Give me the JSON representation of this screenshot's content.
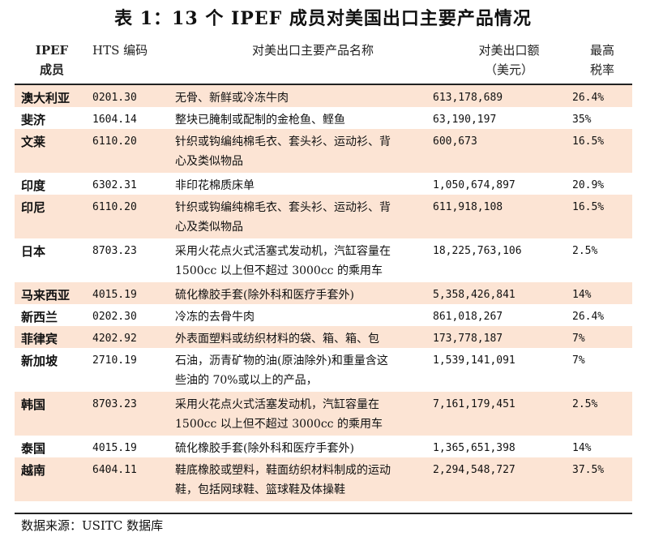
{
  "title": "表 1：13 个 IPEF 成员对美国出口主要产品情况",
  "header": {
    "member_line1": "IPEF",
    "member_line2": "成员",
    "hts": "HTS 编码",
    "product": "对美出口主要产品名称",
    "value_line1": "对美出口额",
    "value_line2": "（美元）",
    "rate_line1": "最高",
    "rate_line2": "税率"
  },
  "rows": [
    {
      "member": "澳大利亚",
      "hts": "0201.30",
      "product": "无骨、新鲜或冷冻牛肉",
      "value": "613,178,689",
      "rate": "26.4%"
    },
    {
      "member": "斐济",
      "hts": "1604.14",
      "product": "整块已腌制或配制的金枪鱼、鲣鱼",
      "value": "63,190,197",
      "rate": "35%"
    },
    {
      "member": "文莱",
      "hts": "6110.20",
      "product": "针织或钩编纯棉毛衣、套头衫、运动衫、背\n心及类似物品",
      "value": "600,673",
      "rate": "16.5%"
    },
    {
      "member": "印度",
      "hts": "6302.31",
      "product": "非印花棉质床单",
      "value": "1,050,674,897",
      "rate": "20.9%"
    },
    {
      "member": "印尼",
      "hts": "6110.20",
      "product": "针织或钩编纯棉毛衣、套头衫、运动衫、背\n心及类似物品",
      "value": "611,918,108",
      "rate": "16.5%"
    },
    {
      "member": "日本",
      "hts": "8703.23",
      "product": "采用火花点火式活塞式发动机，汽缸容量在\n1500cc 以上但不超过 3000cc 的乘用车",
      "value": "18,225,763,106",
      "rate": "2.5%"
    },
    {
      "member": "马来西亚",
      "hts": "4015.19",
      "product": "硫化橡胶手套(除外科和医疗手套外)",
      "value": "5,358,426,841",
      "rate": "14%"
    },
    {
      "member": "新西兰",
      "hts": "0202.30",
      "product": "冷冻的去骨牛肉",
      "value": "861,018,267",
      "rate": "26.4%"
    },
    {
      "member": "菲律宾",
      "hts": "4202.92",
      "product": "外表面塑料或纺织材料的袋、箱、箱、包",
      "value": "173,778,187",
      "rate": "7%"
    },
    {
      "member": "新加坡",
      "hts": "2710.19",
      "product": "石油，沥青矿物的油(原油除外)和重量含这\n些油的 70%或以上的产品，",
      "value": "1,539,141,091",
      "rate": "7%"
    },
    {
      "member": "韩国",
      "hts": "8703.23",
      "product": "采用火花点火式活塞发动机，汽缸容量在\n1500cc 以上但不超过 3000cc 的乘用车",
      "value": "7,161,179,451",
      "rate": "2.5%"
    },
    {
      "member": "泰国",
      "hts": "4015.19",
      "product": "硫化橡胶手套(除外科和医疗手套外)",
      "value": "1,365,651,398",
      "rate": "14%"
    },
    {
      "member": "越南",
      "hts": "6404.11",
      "product": "鞋底橡胶或塑料，鞋面纺织材料制成的运动\n鞋，包括网球鞋、篮球鞋及体操鞋",
      "value": "2,294,548,727",
      "rate": "37.5%"
    }
  ],
  "source": "数据来源：USITC 数据库",
  "colors": {
    "shade": "#fce4d4",
    "rule": "#222222"
  }
}
